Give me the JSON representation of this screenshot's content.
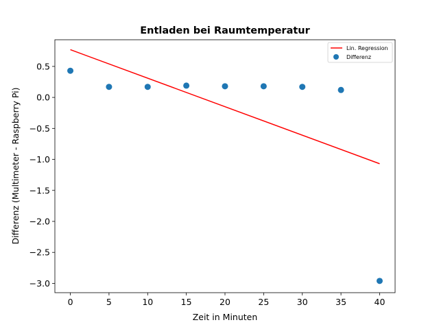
{
  "chart_data": {
    "type": "scatter",
    "title": "Entladen bei Raumtemperatur",
    "xlabel": "Zeit in Minuten",
    "ylabel": "Differenz (Multimeter - Raspberry Pi)",
    "xlim": [
      -2.0,
      42.0
    ],
    "ylim": [
      -3.15,
      0.93
    ],
    "x_ticks": [
      0,
      5,
      10,
      15,
      20,
      25,
      30,
      35,
      40
    ],
    "y_ticks": [
      0.5,
      0.0,
      -0.5,
      -1.0,
      -1.5,
      -2.0,
      -2.5,
      -3.0
    ],
    "x_tick_labels": [
      "0",
      "5",
      "10",
      "15",
      "20",
      "25",
      "30",
      "35",
      "40"
    ],
    "y_tick_labels": [
      "0.5",
      "0.0",
      "−0.5",
      "−1.0",
      "−1.5",
      "−2.0",
      "−2.5",
      "−3.0"
    ],
    "grid": false,
    "legend_position": "top-right",
    "series": [
      {
        "name": "Lin. Regression",
        "kind": "line",
        "color": "#ff0000",
        "x": [
          0,
          40
        ],
        "y": [
          0.77,
          -1.07
        ]
      },
      {
        "name": "Differenz",
        "kind": "scatter",
        "color": "#1f77b4",
        "x": [
          0,
          5,
          10,
          15,
          20,
          25,
          30,
          35,
          40
        ],
        "y": [
          0.43,
          0.17,
          0.17,
          0.19,
          0.18,
          0.18,
          0.17,
          0.12,
          -2.96
        ]
      }
    ]
  }
}
